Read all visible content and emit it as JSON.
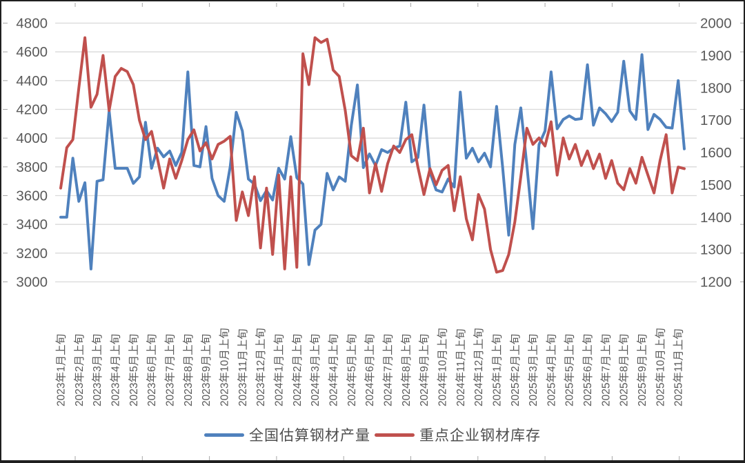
{
  "chart_data": {
    "type": "line",
    "title": "",
    "grid": "horizontal",
    "legend_position": "bottom",
    "left_axis": {
      "min": 3000,
      "max": 4800,
      "step": 200,
      "ticks": [
        3000,
        3200,
        3400,
        3600,
        3800,
        4000,
        4200,
        4400,
        4600,
        4800
      ]
    },
    "right_axis": {
      "min": 1200,
      "max": 2000,
      "step": 100,
      "ticks": [
        1200,
        1300,
        1400,
        1500,
        1600,
        1700,
        1800,
        1900,
        2000
      ]
    },
    "points_per_label": 3,
    "x_tick_labels": [
      "2023年1月上旬",
      "2023年2月上旬",
      "2023年3月上旬",
      "2023年4月上旬",
      "2023年5月上旬",
      "2023年6月上旬",
      "2023年7月上旬",
      "2023年8月上旬",
      "2023年9月上旬",
      "2023年10月上旬",
      "2023年11月上旬",
      "2023年12月上旬",
      "2024年1月上旬",
      "2024年2月上旬",
      "2024年3月上旬",
      "2024年4月上旬",
      "2024年5月上旬",
      "2024年6月上旬",
      "2024年7月上旬",
      "2024年8月上旬",
      "2024年9月上旬",
      "2024年10月上旬",
      "2024年11月上旬",
      "2024年12月上旬",
      "2025年1月上旬",
      "2025年2月上旬",
      "2025年3月上旬",
      "2025年4月上旬",
      "2025年5月上旬",
      "2025年6月上旬",
      "2025年7月上旬",
      "2025年8月上旬",
      "2025年9月上旬",
      "2025年10月上旬",
      "2025年11月上旬"
    ],
    "series": [
      {
        "name": "全国估算钢材产量",
        "axis": "left",
        "color": "#4F81BD",
        "values": [
          3450,
          3450,
          3860,
          3560,
          3690,
          3090,
          3700,
          3710,
          4190,
          3790,
          3790,
          3790,
          3685,
          3730,
          4110,
          3790,
          3930,
          3870,
          3910,
          3810,
          3900,
          4460,
          3810,
          3800,
          4080,
          3720,
          3600,
          3560,
          3800,
          4180,
          4050,
          3715,
          3680,
          3565,
          3635,
          3570,
          3790,
          3715,
          4010,
          3725,
          3680,
          3120,
          3360,
          3400,
          3755,
          3640,
          3730,
          3700,
          4090,
          4370,
          3795,
          3890,
          3810,
          3920,
          3900,
          3930,
          3945,
          4250,
          3835,
          3865,
          4230,
          3760,
          3640,
          3625,
          3715,
          3660,
          4320,
          3860,
          3930,
          3835,
          3895,
          3800,
          4220,
          3795,
          3325,
          3955,
          4210,
          3810,
          3370,
          3955,
          4050,
          4460,
          4065,
          4130,
          4155,
          4130,
          4135,
          4510,
          4090,
          4210,
          4170,
          4115,
          4180,
          4535,
          4190,
          4130,
          4580,
          4060,
          4165,
          4130,
          4075,
          4070,
          4400,
          3925
        ]
      },
      {
        "name": "重点企业钢材库存",
        "axis": "right",
        "color": "#C0504D",
        "values": [
          1490,
          1615,
          1640,
          1800,
          1955,
          1740,
          1780,
          1900,
          1730,
          1835,
          1860,
          1850,
          1810,
          1700,
          1640,
          1665,
          1580,
          1490,
          1580,
          1520,
          1575,
          1640,
          1670,
          1605,
          1630,
          1580,
          1625,
          1635,
          1650,
          1390,
          1478,
          1405,
          1525,
          1305,
          1490,
          1285,
          1530,
          1240,
          1525,
          1245,
          1905,
          1810,
          1955,
          1940,
          1950,
          1855,
          1835,
          1730,
          1590,
          1575,
          1675,
          1475,
          1565,
          1480,
          1565,
          1620,
          1600,
          1640,
          1655,
          1555,
          1470,
          1550,
          1500,
          1545,
          1560,
          1420,
          1525,
          1395,
          1330,
          1470,
          1425,
          1300,
          1230,
          1235,
          1285,
          1385,
          1525,
          1675,
          1625,
          1645,
          1620,
          1695,
          1530,
          1645,
          1580,
          1625,
          1560,
          1605,
          1550,
          1595,
          1520,
          1575,
          1505,
          1485,
          1550,
          1505,
          1585,
          1530,
          1475,
          1575,
          1655,
          1475,
          1555,
          1550
        ]
      }
    ],
    "styles": {
      "gridline_color": "#D9D9D9",
      "axis_label_color": "#595959",
      "frame_tick_color": "#A6A6A6",
      "line_width": 4
    }
  }
}
